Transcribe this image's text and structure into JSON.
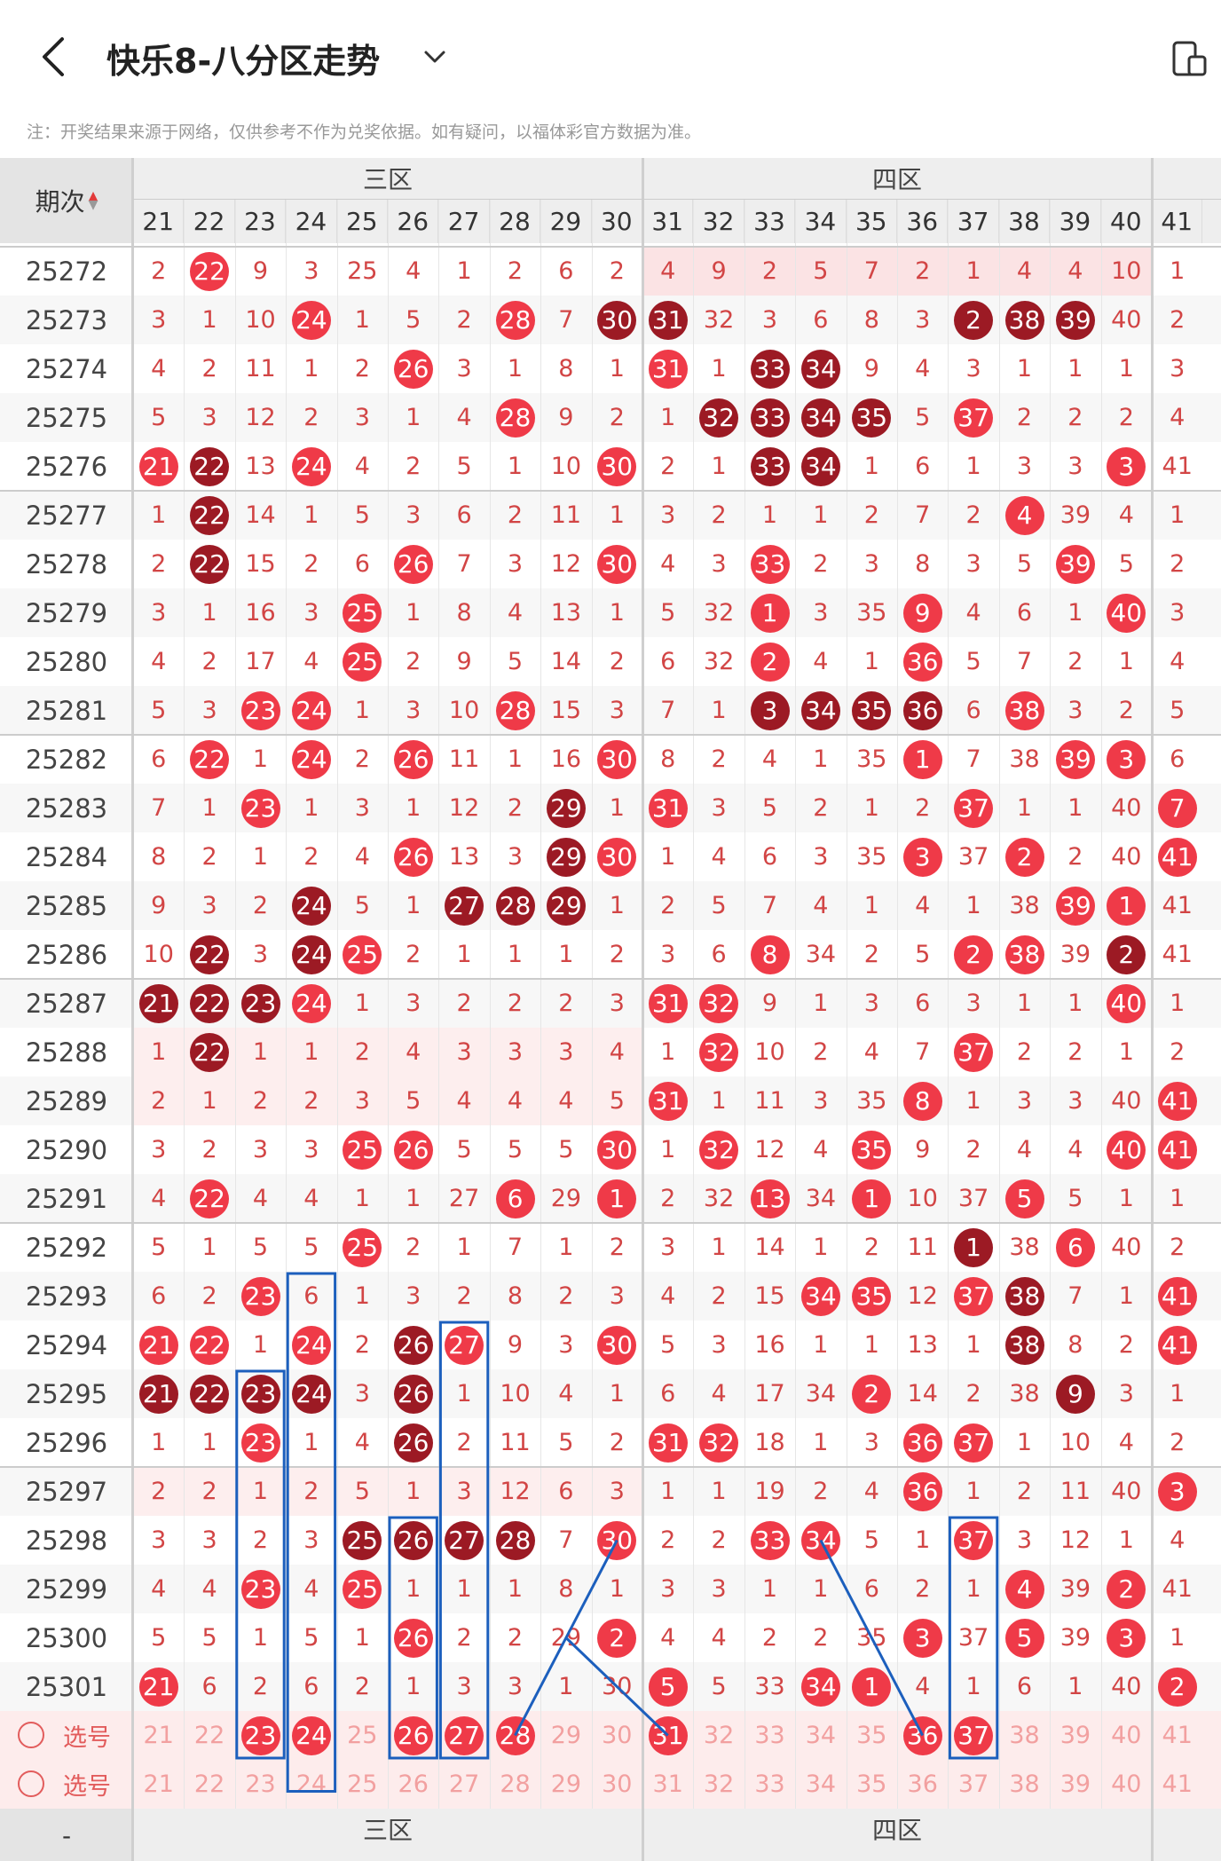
{
  "header": {
    "title": "快乐8-八分区走势",
    "note": "注：开奖结果来源于网络，仅供参考不作为兑奖依据。如有疑问，以福体彩官方数据为准。"
  },
  "table": {
    "period_label": "期次",
    "zones": [
      "三区",
      "四区"
    ],
    "columns": [
      21,
      22,
      23,
      24,
      25,
      26,
      27,
      28,
      29,
      30,
      31,
      32,
      33,
      34,
      35,
      36,
      37,
      38,
      39,
      40,
      41
    ],
    "select_label": "选号",
    "footer_dash": "-",
    "rows": [
      {
        "period": "25272",
        "v": [
          "2",
          "22",
          "9",
          "3",
          "25",
          "4",
          "1",
          "2",
          "6",
          "2",
          "4",
          "9",
          "2",
          "5",
          "7",
          "2",
          "1",
          "4",
          "4",
          "10",
          "1"
        ],
        "t": "svssssssssssssssssssss",
        "hl": "zone4"
      },
      {
        "period": "25273",
        "v": [
          "3",
          "1",
          "10",
          "24",
          "1",
          "5",
          "2",
          "28",
          "7",
          "30",
          "31",
          "32",
          "3",
          "6",
          "8",
          "3",
          "2",
          "38",
          "39",
          "40",
          "2"
        ],
        "t": "sssvsssvsddsssssdddss"
      },
      {
        "period": "25274",
        "v": [
          "4",
          "2",
          "11",
          "1",
          "2",
          "26",
          "3",
          "1",
          "8",
          "1",
          "31",
          "1",
          "33",
          "34",
          "9",
          "4",
          "3",
          "1",
          "1",
          "1",
          "3"
        ],
        "t": "sssssvssssvsddssssss"
      },
      {
        "period": "25275",
        "v": [
          "5",
          "3",
          "12",
          "2",
          "3",
          "1",
          "4",
          "28",
          "9",
          "2",
          "1",
          "32",
          "33",
          "34",
          "35",
          "5",
          "37",
          "2",
          "2",
          "2",
          "4"
        ],
        "t": "sssssssvsssddddsvssss"
      },
      {
        "period": "25276",
        "v": [
          "21",
          "22",
          "13",
          "24",
          "4",
          "2",
          "5",
          "1",
          "10",
          "30",
          "2",
          "1",
          "33",
          "34",
          "1",
          "6",
          "1",
          "3",
          "3",
          "3",
          "41"
        ],
        "t": "vdsvsssssvssddsssssv"
      },
      {
        "period": "25277",
        "v": [
          "1",
          "22",
          "14",
          "1",
          "5",
          "3",
          "6",
          "2",
          "11",
          "1",
          "3",
          "2",
          "1",
          "1",
          "2",
          "7",
          "2",
          "4",
          "39",
          "4",
          "1"
        ],
        "t": "sdsssssssssssssssvss"
      },
      {
        "period": "25278",
        "v": [
          "2",
          "22",
          "15",
          "2",
          "6",
          "26",
          "7",
          "3",
          "12",
          "30",
          "4",
          "3",
          "33",
          "2",
          "3",
          "8",
          "3",
          "5",
          "39",
          "5",
          "2"
        ],
        "t": "sdsssvsssvssvsssssvss"
      },
      {
        "period": "25279",
        "v": [
          "3",
          "1",
          "16",
          "3",
          "25",
          "1",
          "8",
          "4",
          "13",
          "1",
          "5",
          "32",
          "1",
          "3",
          "35",
          "9",
          "4",
          "6",
          "1",
          "40",
          "3"
        ],
        "t": "ssssvsssssssvssvsssvs"
      },
      {
        "period": "25280",
        "v": [
          "4",
          "2",
          "17",
          "4",
          "25",
          "2",
          "9",
          "5",
          "14",
          "2",
          "6",
          "32",
          "2",
          "4",
          "1",
          "36",
          "5",
          "7",
          "2",
          "1",
          "4"
        ],
        "t": "ssssvsssssssvssvssss"
      },
      {
        "period": "25281",
        "v": [
          "5",
          "3",
          "23",
          "24",
          "1",
          "3",
          "10",
          "28",
          "15",
          "3",
          "7",
          "1",
          "3",
          "34",
          "35",
          "36",
          "6",
          "38",
          "3",
          "2",
          "5"
        ],
        "t": "ssvvsssvssssddddsvss"
      },
      {
        "period": "25282",
        "v": [
          "6",
          "22",
          "1",
          "24",
          "2",
          "26",
          "11",
          "1",
          "16",
          "30",
          "8",
          "2",
          "4",
          "1",
          "35",
          "1",
          "7",
          "38",
          "39",
          "3",
          "6"
        ],
        "t": "svsvsvsssvsssssvssvvs"
      },
      {
        "period": "25283",
        "v": [
          "7",
          "1",
          "23",
          "1",
          "3",
          "1",
          "12",
          "2",
          "29",
          "1",
          "31",
          "3",
          "5",
          "2",
          "1",
          "2",
          "37",
          "1",
          "1",
          "40",
          "7"
        ],
        "t": "ssvsssssdsvsssssvsssvs"
      },
      {
        "period": "25284",
        "v": [
          "8",
          "2",
          "1",
          "2",
          "4",
          "26",
          "13",
          "3",
          "29",
          "30",
          "1",
          "4",
          "6",
          "3",
          "35",
          "3",
          "37",
          "2",
          "2",
          "40",
          "41"
        ],
        "t": "sssssvssdvsssssvsvssvd"
      },
      {
        "period": "25285",
        "v": [
          "9",
          "3",
          "2",
          "24",
          "5",
          "1",
          "27",
          "28",
          "29",
          "1",
          "2",
          "5",
          "7",
          "4",
          "1",
          "4",
          "1",
          "38",
          "39",
          "1",
          "41"
        ],
        "t": "sssdssdddsssssssssvvsd"
      },
      {
        "period": "25286",
        "v": [
          "10",
          "22",
          "3",
          "24",
          "25",
          "2",
          "1",
          "1",
          "1",
          "2",
          "3",
          "6",
          "8",
          "34",
          "2",
          "5",
          "2",
          "38",
          "39",
          "2",
          "41"
        ],
        "t": "sdsdvsssssssvsssvvsd"
      },
      {
        "period": "25287",
        "v": [
          "21",
          "22",
          "23",
          "24",
          "1",
          "3",
          "2",
          "2",
          "2",
          "3",
          "31",
          "32",
          "9",
          "1",
          "3",
          "6",
          "3",
          "1",
          "1",
          "40",
          "1"
        ],
        "t": "dddvssssssvvsssssssvs"
      },
      {
        "period": "25288",
        "v": [
          "1",
          "22",
          "1",
          "1",
          "2",
          "4",
          "3",
          "3",
          "3",
          "4",
          "1",
          "32",
          "10",
          "2",
          "4",
          "7",
          "37",
          "2",
          "2",
          "1",
          "2"
        ],
        "t": "sdsssssssssvssssvssss",
        "hl": "zone3"
      },
      {
        "period": "25289",
        "v": [
          "2",
          "1",
          "2",
          "2",
          "3",
          "5",
          "4",
          "4",
          "4",
          "5",
          "31",
          "1",
          "11",
          "3",
          "35",
          "8",
          "1",
          "3",
          "3",
          "40",
          "41"
        ],
        "t": "ssssssssssvssssvssssvv",
        "hl": "zone3"
      },
      {
        "period": "25290",
        "v": [
          "3",
          "2",
          "3",
          "3",
          "25",
          "26",
          "5",
          "5",
          "5",
          "30",
          "1",
          "32",
          "12",
          "4",
          "35",
          "9",
          "2",
          "4",
          "4",
          "40",
          "41"
        ],
        "t": "ssssvvsssvsvssvssssvv"
      },
      {
        "period": "25291",
        "v": [
          "4",
          "22",
          "4",
          "4",
          "1",
          "1",
          "27",
          "6",
          "29",
          "1",
          "2",
          "32",
          "13",
          "34",
          "1",
          "10",
          "37",
          "5",
          "5",
          "1",
          "1"
        ],
        "t": "svsssssvsvssvsvssvsss"
      },
      {
        "period": "25292",
        "v": [
          "5",
          "1",
          "5",
          "5",
          "25",
          "2",
          "1",
          "7",
          "1",
          "2",
          "3",
          "1",
          "14",
          "1",
          "2",
          "11",
          "1",
          "38",
          "6",
          "40",
          "2"
        ],
        "t": "ssssvsssssssssssdsvs"
      },
      {
        "period": "25293",
        "v": [
          "6",
          "2",
          "23",
          "6",
          "1",
          "3",
          "2",
          "8",
          "2",
          "3",
          "4",
          "2",
          "15",
          "34",
          "35",
          "12",
          "37",
          "38",
          "7",
          "1",
          "41"
        ],
        "t": "ssvssssssssssvvsvdssv"
      },
      {
        "period": "25294",
        "v": [
          "21",
          "22",
          "1",
          "24",
          "2",
          "26",
          "27",
          "9",
          "3",
          "30",
          "5",
          "3",
          "16",
          "1",
          "1",
          "13",
          "1",
          "38",
          "8",
          "2",
          "41"
        ],
        "t": "vvsvsdvssvsssssssdssv"
      },
      {
        "period": "25295",
        "v": [
          "21",
          "22",
          "23",
          "24",
          "3",
          "26",
          "1",
          "10",
          "4",
          "1",
          "6",
          "4",
          "17",
          "34",
          "2",
          "14",
          "2",
          "38",
          "9",
          "3",
          "1"
        ],
        "t": "dddd sdssssssssvsssdsss"
      },
      {
        "period": "25296",
        "v": [
          "1",
          "1",
          "23",
          "1",
          "4",
          "26",
          "2",
          "11",
          "5",
          "2",
          "31",
          "32",
          "18",
          "1",
          "3",
          "36",
          "37",
          "1",
          "10",
          "4",
          "2"
        ],
        "t": "ssvssdssssvvsssvvsssss"
      },
      {
        "period": "25297",
        "v": [
          "2",
          "2",
          "1",
          "2",
          "5",
          "1",
          "3",
          "12",
          "6",
          "3",
          "1",
          "1",
          "19",
          "2",
          "4",
          "36",
          "1",
          "2",
          "11",
          "40",
          "3"
        ],
        "t": "sssssssssssssssvssssvs",
        "hl": "zone3"
      },
      {
        "period": "25298",
        "v": [
          "3",
          "3",
          "2",
          "3",
          "25",
          "26",
          "27",
          "28",
          "7",
          "30",
          "2",
          "2",
          "33",
          "34",
          "5",
          "1",
          "37",
          "3",
          "12",
          "1",
          "4"
        ],
        "t": "ssssdddd svssvvssvsssss"
      },
      {
        "period": "25299",
        "v": [
          "4",
          "4",
          "23",
          "4",
          "25",
          "1",
          "1",
          "1",
          "8",
          "1",
          "3",
          "3",
          "1",
          "1",
          "6",
          "2",
          "1",
          "4",
          "39",
          "2",
          "41"
        ],
        "t": "ssvsvssssssssssssvsv"
      },
      {
        "period": "25300",
        "v": [
          "5",
          "5",
          "1",
          "5",
          "1",
          "26",
          "2",
          "2",
          "29",
          "2",
          "4",
          "4",
          "2",
          "2",
          "35",
          "3",
          "37",
          "5",
          "39",
          "3",
          "1"
        ],
        "t": "sssssvsssvsssssvsvsvss"
      },
      {
        "period": "25301",
        "v": [
          "21",
          "6",
          "2",
          "6",
          "2",
          "1",
          "3",
          "3",
          "1",
          "30",
          "5",
          "5",
          "33",
          "34",
          "1",
          "4",
          "1",
          "6",
          "1",
          "40",
          "2"
        ],
        "t": "vsssssssssvssvvsssssvs"
      }
    ],
    "select_row_1_balls": [
      "23",
      "24",
      "26",
      "27",
      "28",
      "31",
      "36",
      "37"
    ]
  }
}
